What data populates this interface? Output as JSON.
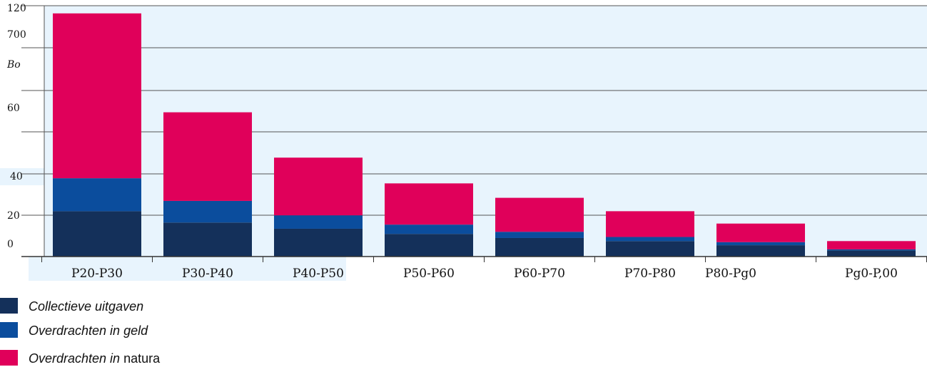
{
  "chart_data": {
    "type": "bar",
    "stacked": true,
    "categories": [
      "P20-P30",
      "P30-P40",
      "P40-P50",
      "P50-P60",
      "P60-P70",
      "P70-P80",
      "P80-Pg0",
      "Pg0-P,00"
    ],
    "series": [
      {
        "name": "Collectieve uitgaven",
        "values": [
          22,
          16.5,
          13.5,
          11,
          9,
          7.5,
          5.5,
          3
        ],
        "color": "#14305a"
      },
      {
        "name": "Overdrachten in geld",
        "values": [
          16,
          10.5,
          6.5,
          4.5,
          3,
          2,
          1.5,
          0.5
        ],
        "color": "#0b4d9d"
      },
      {
        "name": "Overdrachten in natura",
        "values": [
          80,
          43,
          28,
          20,
          16.5,
          12.5,
          9,
          4
        ],
        "color": "#e0005a"
      }
    ],
    "y_tick_labels": [
      "0",
      "20",
      "40",
      "60",
      "Bo",
      "700",
      "120"
    ],
    "ylim": [
      0,
      120
    ],
    "grid": true,
    "legend_position": "bottom-left"
  },
  "legend": {
    "items": [
      {
        "label": "Collectieve uitgaven",
        "suffix": ""
      },
      {
        "label": "Overdrachten in geld",
        "suffix": ""
      },
      {
        "label": "Overdrachten in ",
        "suffix": "natura"
      }
    ]
  }
}
